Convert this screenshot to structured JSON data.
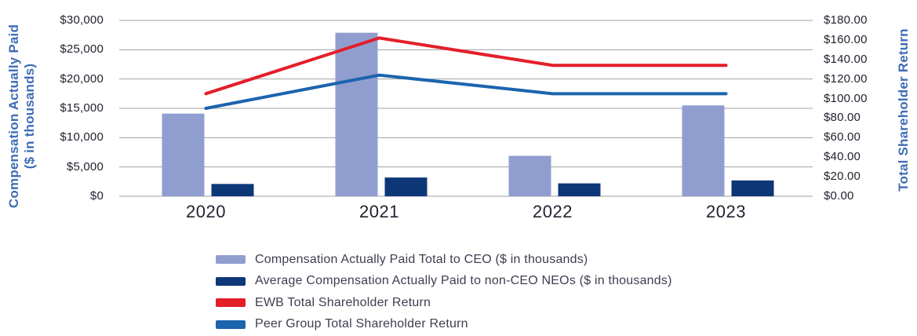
{
  "chart_data": {
    "type": "combo",
    "combo_types": [
      "bar",
      "bar",
      "line",
      "line"
    ],
    "categories": [
      "2020",
      "2021",
      "2022",
      "2023"
    ],
    "series": [
      {
        "name": "Compensation Actually Paid Total to CEO ($ in thousands)",
        "type": "bar",
        "axis": "left",
        "color": "#909ECF",
        "values": [
          14100,
          27900,
          6900,
          15500
        ]
      },
      {
        "name": "Average Compensation Actually Paid to non-CEO NEOs ($ in thousands)",
        "type": "bar",
        "axis": "left",
        "color": "#0E3778",
        "values": [
          2100,
          3200,
          2200,
          2700
        ]
      },
      {
        "name": "EWB Total Shareholder Return",
        "type": "line",
        "axis": "right",
        "color": "#E31E29",
        "values": [
          105,
          162,
          134,
          134
        ]
      },
      {
        "name": "Peer Group Total Shareholder Return",
        "type": "line",
        "axis": "right",
        "color": "#1B64AE",
        "values": [
          90,
          124,
          105,
          105
        ]
      }
    ],
    "left_axis": {
      "title_line1": "Compensation Actually Paid",
      "title_line2": "($ in thousands)",
      "min": 0,
      "max": 30000,
      "step": 5000,
      "tick_values": [
        30000,
        25000,
        20000,
        15000,
        10000,
        5000,
        0
      ],
      "tick_labels": [
        "$30,000",
        "$25,000",
        "$20,000",
        "$15,000",
        "$10,000",
        "$5,000",
        "$0"
      ]
    },
    "right_axis": {
      "title": "Total Shareholder Return",
      "min": 0,
      "max": 180,
      "step": 20,
      "tick_values": [
        180,
        160,
        140,
        120,
        100,
        80,
        60,
        40,
        20,
        0
      ],
      "tick_labels": [
        "$180.00",
        "$160.00",
        "$140.00",
        "$120.00",
        "$100.00",
        "$80.00",
        "$60.00",
        "$40.00",
        "$20.00",
        "$0.00"
      ]
    },
    "grid": true,
    "gridline_color": "#9EA0A3",
    "legend_position": "bottom-left"
  },
  "colors": {
    "axis_title": "#3F6DB5",
    "tick_text": "#232230",
    "legend_text": "#3E3E50",
    "background": "#ffffff"
  }
}
